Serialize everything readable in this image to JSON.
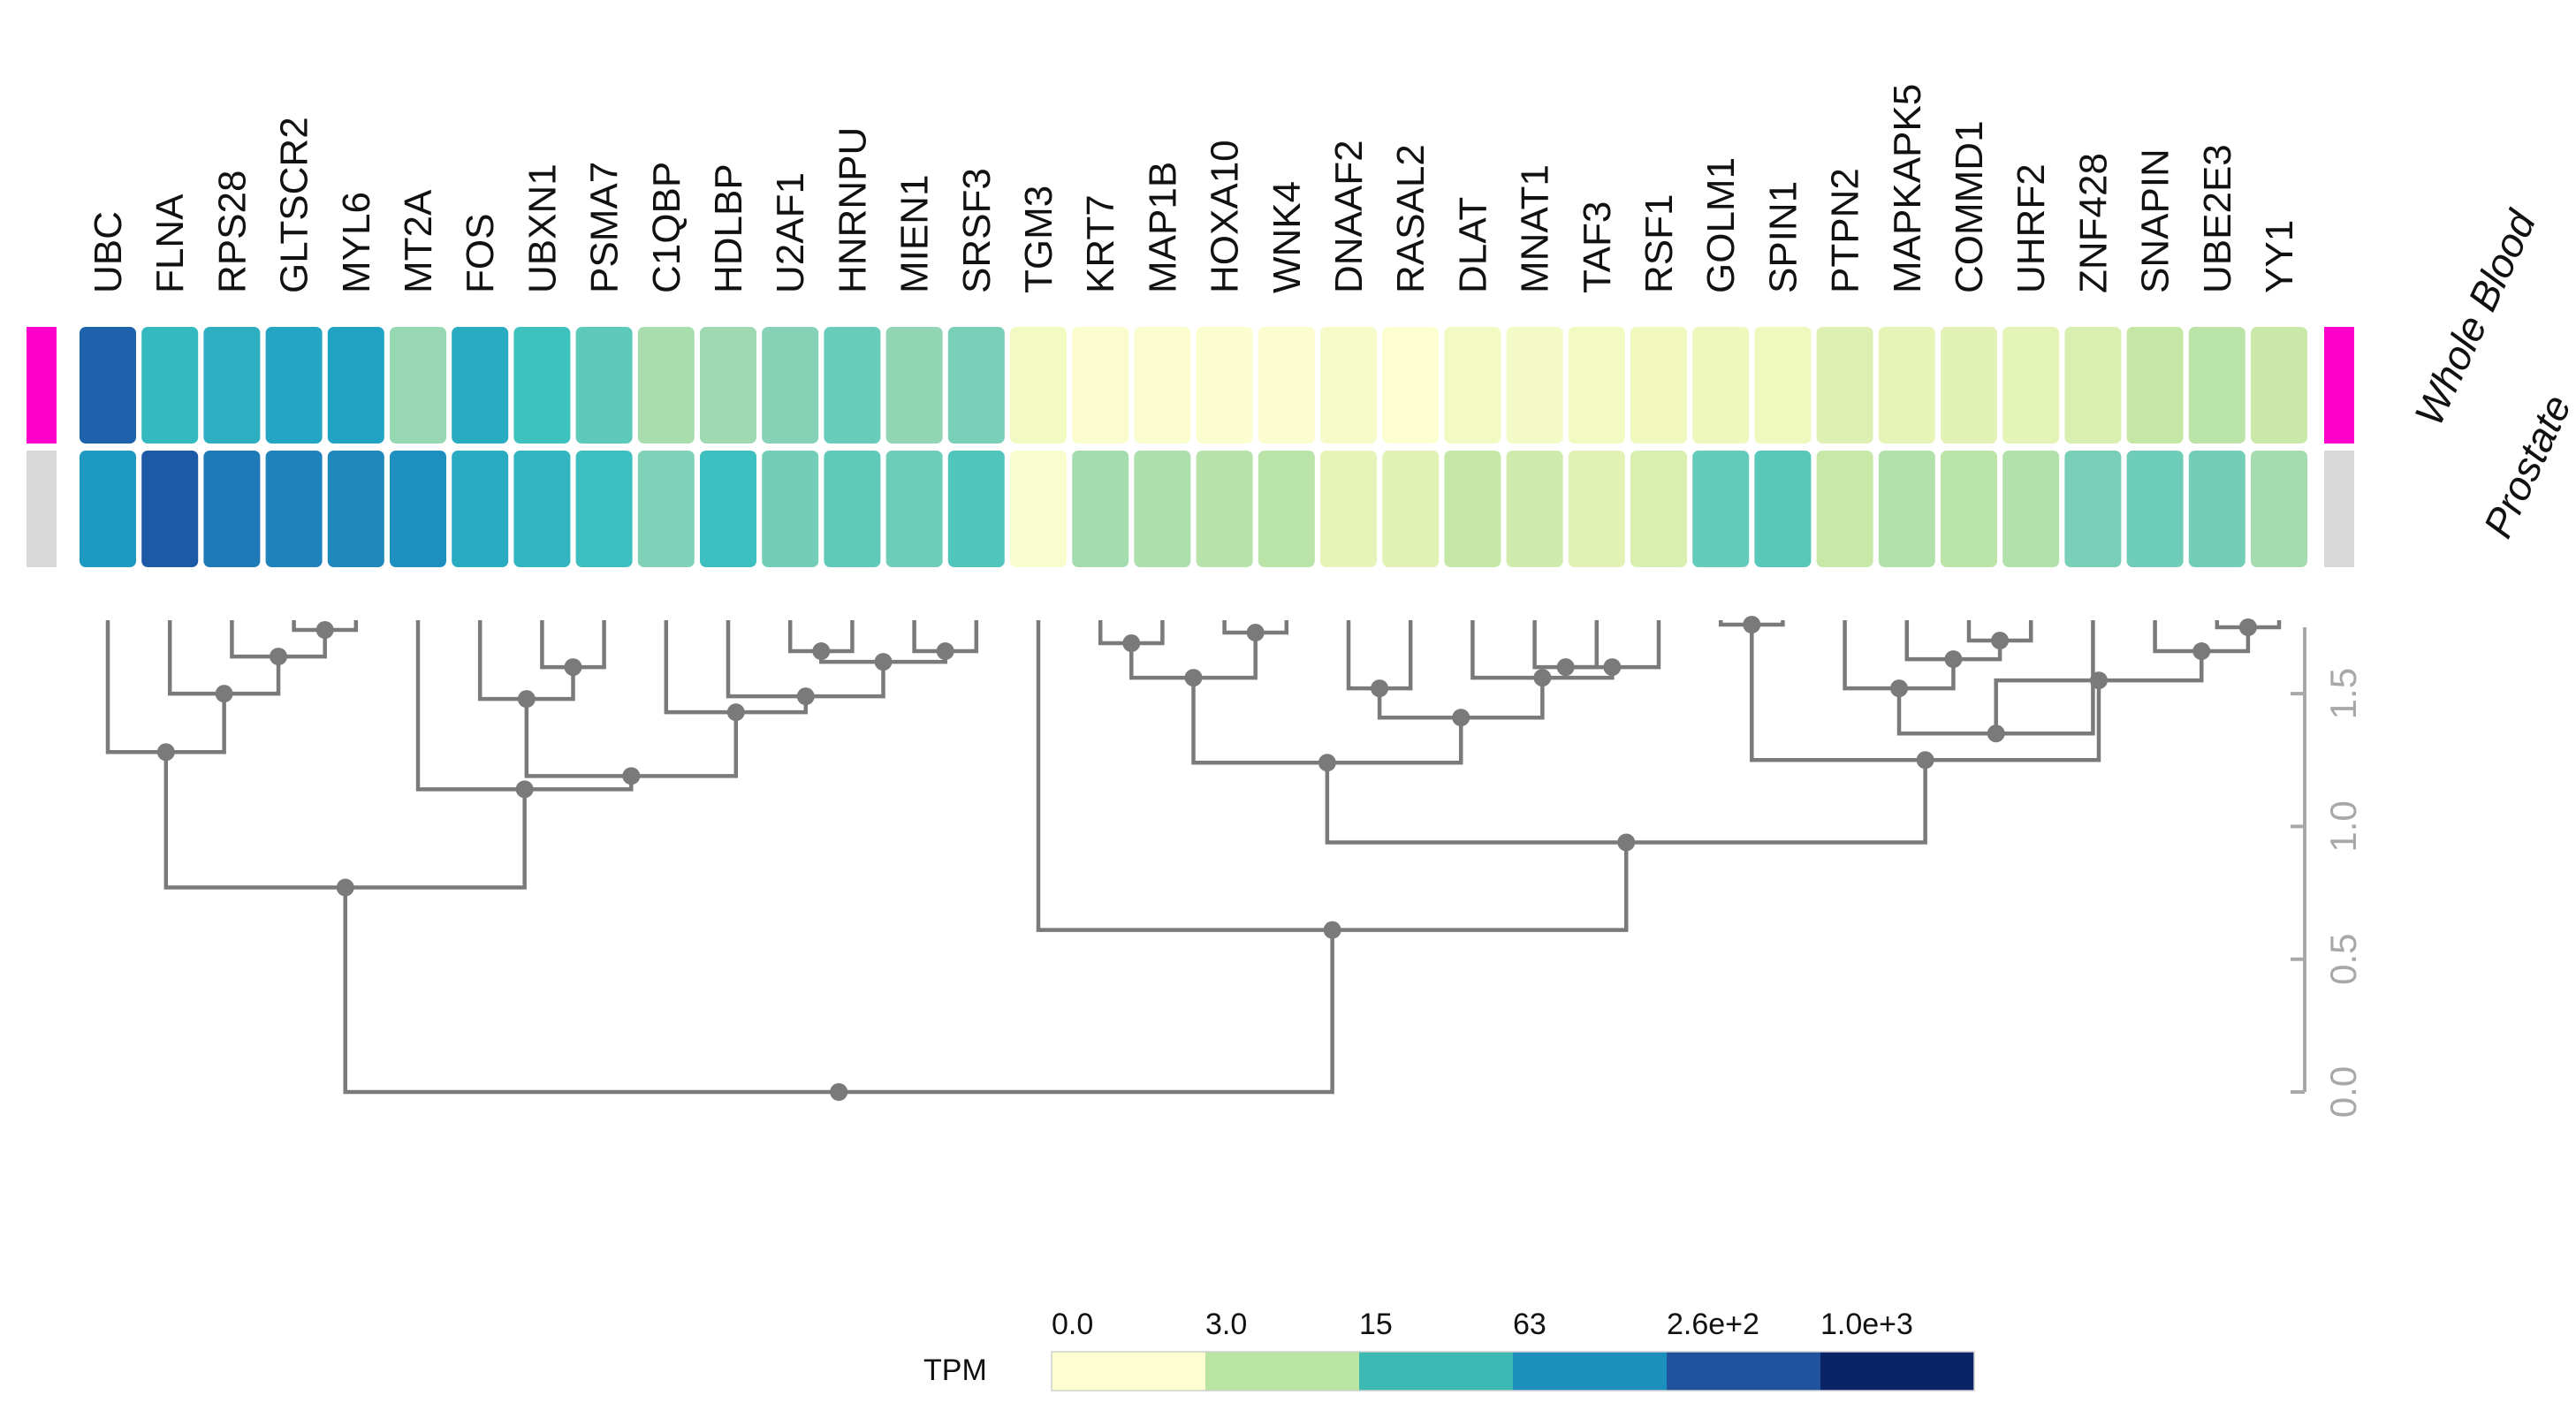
{
  "chart_data": {
    "type": "heatmap",
    "title": "",
    "genes": [
      "UBC",
      "FLNA",
      "RPS28",
      "GLTSCR2",
      "MYL6",
      "MT2A",
      "FOS",
      "UBXN1",
      "PSMA7",
      "C1QBP",
      "HDLBP",
      "U2AF1",
      "HNRNPU",
      "MIEN1",
      "SRSF3",
      "TGM3",
      "KRT7",
      "MAP1B",
      "HOXA10",
      "WNK4",
      "DNAAF2",
      "RASAL2",
      "DLAT",
      "MNAT1",
      "TAF3",
      "RSF1",
      "GOLM1",
      "SPIN1",
      "PTPN2",
      "MAPKAPK5",
      "COMMD1",
      "UHRF2",
      "ZNF428",
      "SNAPIN",
      "UBE2E3",
      "YY1"
    ],
    "tissues": [
      {
        "name": "Whole Blood",
        "color": "#ff00cc"
      },
      {
        "name": "Prostate",
        "color": "#d9d9d9"
      }
    ],
    "values_tpm": [
      [
        900,
        180,
        230,
        300,
        320,
        40,
        260,
        140,
        95,
        28,
        35,
        55,
        80,
        45,
        65,
        1.8,
        0.2,
        0.2,
        0.1,
        0.1,
        0.8,
        0.05,
        1.5,
        1.1,
        1.8,
        2.2,
        2.8,
        2.5,
        6,
        4,
        5,
        4.5,
        7,
        15,
        18,
        12
      ],
      [
        380,
        1000,
        650,
        560,
        520,
        450,
        260,
        200,
        150,
        60,
        150,
        70,
        90,
        75,
        110,
        0.3,
        30,
        25,
        20,
        18,
        4,
        5,
        14,
        10,
        5,
        7,
        85,
        100,
        13,
        22,
        18,
        22,
        65,
        75,
        70,
        30
      ]
    ],
    "dendrogram_axis": {
      "label": "",
      "ticks": [
        "0.0",
        "0.5",
        "1.0",
        "1.5"
      ],
      "range": [
        0,
        1.75
      ]
    },
    "dendrogram": {
      "leaf_order": [
        "UBC",
        "FLNA",
        "RPS28",
        "GLTSCR2",
        "MYL6",
        "MT2A",
        "FOS",
        "UBXN1",
        "PSMA7",
        "C1QBP",
        "HDLBP",
        "U2AF1",
        "HNRNPU",
        "MIEN1",
        "SRSF3",
        "TGM3",
        "KRT7",
        "MAP1B",
        "HOXA10",
        "WNK4",
        "DNAAF2",
        "RASAL2",
        "DLAT",
        "MNAT1",
        "TAF3",
        "RSF1",
        "GOLM1",
        "SPIN1",
        "PTPN2",
        "MAPKAPK5",
        "COMMD1",
        "UHRF2",
        "ZNF428",
        "SNAPIN",
        "UBE2E3",
        "YY1"
      ],
      "merges": [
        {
          "left": "GLTSCR2",
          "right": "MYL6",
          "height": 1.74
        },
        {
          "left": "RPS28",
          "right": "m1",
          "height": 1.64
        },
        {
          "left": "FLNA",
          "right": "m2",
          "height": 1.5
        },
        {
          "left": "UBC",
          "right": "m3",
          "height": 1.28
        },
        {
          "left": "UBXN1",
          "right": "PSMA7",
          "height": 1.6
        },
        {
          "left": "FOS",
          "right": "m5",
          "height": 1.48
        },
        {
          "left": "U2AF1",
          "right": "HNRNPU",
          "height": 1.66
        },
        {
          "left": "MIEN1",
          "right": "SRSF3",
          "height": 1.66
        },
        {
          "left": "m7",
          "right": "m8",
          "height": 1.62
        },
        {
          "left": "HDLBP",
          "right": "m9",
          "height": 1.49
        },
        {
          "left": "C1QBP",
          "right": "m10",
          "height": 1.43
        },
        {
          "left": "m6",
          "right": "m11",
          "height": 1.19
        },
        {
          "left": "MT2A",
          "right": "m12",
          "height": 1.14
        },
        {
          "left": "m4",
          "right": "m13",
          "height": 0.77
        },
        {
          "left": "KRT7",
          "right": "MAP1B",
          "height": 1.69
        },
        {
          "left": "HOXA10",
          "right": "WNK4",
          "height": 1.73
        },
        {
          "left": "m15",
          "right": "m16",
          "height": 1.56
        },
        {
          "left": "DNAAF2",
          "right": "RASAL2",
          "height": 1.52
        },
        {
          "left": "MNAT1",
          "right": "TAF3",
          "height": 1.6
        },
        {
          "left": "m19",
          "right": "RSF1",
          "height": 1.6
        },
        {
          "left": "DLAT",
          "right": "m20",
          "height": 1.56
        },
        {
          "left": "m18",
          "right": "m21",
          "height": 1.41
        },
        {
          "left": "m17",
          "right": "m22",
          "height": 1.24
        },
        {
          "left": "GOLM1",
          "right": "SPIN1",
          "height": 1.76
        },
        {
          "left": "COMMD1",
          "right": "UHRF2",
          "height": 1.7
        },
        {
          "left": "MAPKAPK5",
          "right": "m25",
          "height": 1.63
        },
        {
          "left": "PTPN2",
          "right": "m26",
          "height": 1.52
        },
        {
          "left": "m27",
          "right": "ZNF428",
          "height": 1.35
        },
        {
          "left": "UBE2E3",
          "right": "YY1",
          "height": 1.75
        },
        {
          "left": "SNAPIN",
          "right": "m29",
          "height": 1.66
        },
        {
          "left": "m28",
          "right": "m30",
          "height": 1.55
        },
        {
          "left": "m24",
          "right": "m31",
          "height": 1.25
        },
        {
          "left": "m23",
          "right": "m32",
          "height": 0.94
        },
        {
          "left": "TGM3",
          "right": "m33",
          "height": 0.61
        },
        {
          "left": "m14",
          "right": "m34",
          "height": 0.0
        }
      ]
    },
    "legend": {
      "title": "TPM",
      "ticks": [
        "0.0",
        "3.0",
        "15",
        "63",
        "2.6e+2",
        "1.0e+3"
      ],
      "colors": [
        "#fcfdd1",
        "#b9e4a2",
        "#3db9b3",
        "#1c8fbd",
        "#1f539e",
        "#0b2466"
      ]
    }
  }
}
